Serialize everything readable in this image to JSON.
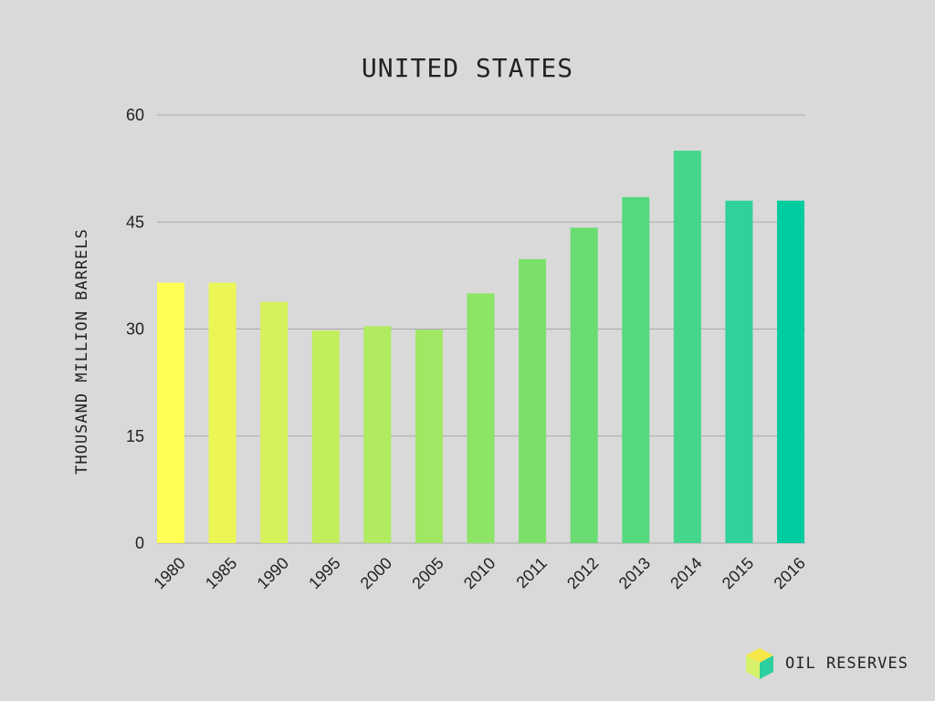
{
  "chart_data": {
    "type": "bar",
    "title": "UNITED STATES",
    "ylabel": "THOUSAND MILLION BARRELS",
    "xlabel": "",
    "categories": [
      "1980",
      "1985",
      "1990",
      "1995",
      "2000",
      "2005",
      "2010",
      "2011",
      "2012",
      "2013",
      "2014",
      "2015",
      "2016"
    ],
    "values": [
      36.5,
      36.5,
      33.8,
      29.8,
      30.4,
      29.9,
      35.0,
      39.8,
      44.2,
      48.5,
      55.0,
      48.0,
      48.0
    ],
    "ylim": [
      0,
      60
    ],
    "yticks": [
      "0",
      "15",
      "30",
      "45",
      "60"
    ],
    "bar_colors": [
      "#ffff55",
      "#ebf656",
      "#d5f25a",
      "#c2ee5d",
      "#b0eb60",
      "#a0e863",
      "#8de465",
      "#7be068",
      "#68dc70",
      "#55d97f",
      "#45d68c",
      "#30d29a",
      "#00cca0"
    ],
    "gridlines": true,
    "legend": "none"
  },
  "brand": {
    "label": "OIL RESERVES",
    "logo_icon": "cube-icon"
  }
}
